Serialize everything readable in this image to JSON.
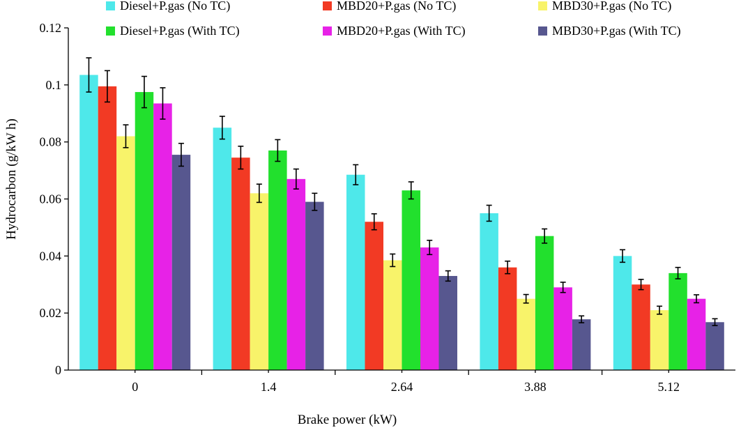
{
  "chart_data": {
    "type": "bar",
    "xlabel": "Brake power (kW)",
    "ylabel": "Hydrocarbon (g/kW h)",
    "ylim": [
      0,
      0.12
    ],
    "yticks": [
      "0",
      "0.02",
      "0.04",
      "0.06",
      "0.08",
      "0.1",
      "0.12"
    ],
    "yticks_values": [
      0,
      0.02,
      0.04,
      0.06,
      0.08,
      0.1,
      0.12
    ],
    "categories": [
      "0",
      "1.4",
      "2.64",
      "3.88",
      "5.12"
    ],
    "legend_position": "top",
    "error_bars": true,
    "series": [
      {
        "name": "Diesel+P.gas (No TC)",
        "color": "#4ee8ea",
        "values": [
          0.1035,
          0.085,
          0.0685,
          0.055,
          0.04
        ],
        "errors": [
          0.006,
          0.004,
          0.0035,
          0.0028,
          0.0022
        ]
      },
      {
        "name": "MBD20+P.gas (No TC)",
        "color": "#f23a24",
        "values": [
          0.0995,
          0.0745,
          0.052,
          0.036,
          0.03
        ],
        "errors": [
          0.0055,
          0.004,
          0.0028,
          0.0022,
          0.0018
        ]
      },
      {
        "name": "MBD30+P.gas (No TC)",
        "color": "#f8f36a",
        "values": [
          0.082,
          0.062,
          0.0385,
          0.025,
          0.021
        ],
        "errors": [
          0.004,
          0.0032,
          0.0022,
          0.0015,
          0.0014
        ]
      },
      {
        "name": "Diesel+P.gas (With TC)",
        "color": "#22e02d",
        "values": [
          0.0975,
          0.077,
          0.063,
          0.047,
          0.034
        ],
        "errors": [
          0.0055,
          0.0038,
          0.003,
          0.0025,
          0.002
        ]
      },
      {
        "name": "MBD20+P.gas (With TC)",
        "color": "#e722e7",
        "values": [
          0.0935,
          0.067,
          0.043,
          0.029,
          0.025
        ],
        "errors": [
          0.0055,
          0.0035,
          0.0025,
          0.0018,
          0.0014
        ]
      },
      {
        "name": "MBD30+P.gas (With TC)",
        "color": "#57578f",
        "values": [
          0.0755,
          0.059,
          0.033,
          0.0178,
          0.0168
        ],
        "errors": [
          0.004,
          0.003,
          0.0018,
          0.0012,
          0.0012
        ]
      }
    ]
  }
}
